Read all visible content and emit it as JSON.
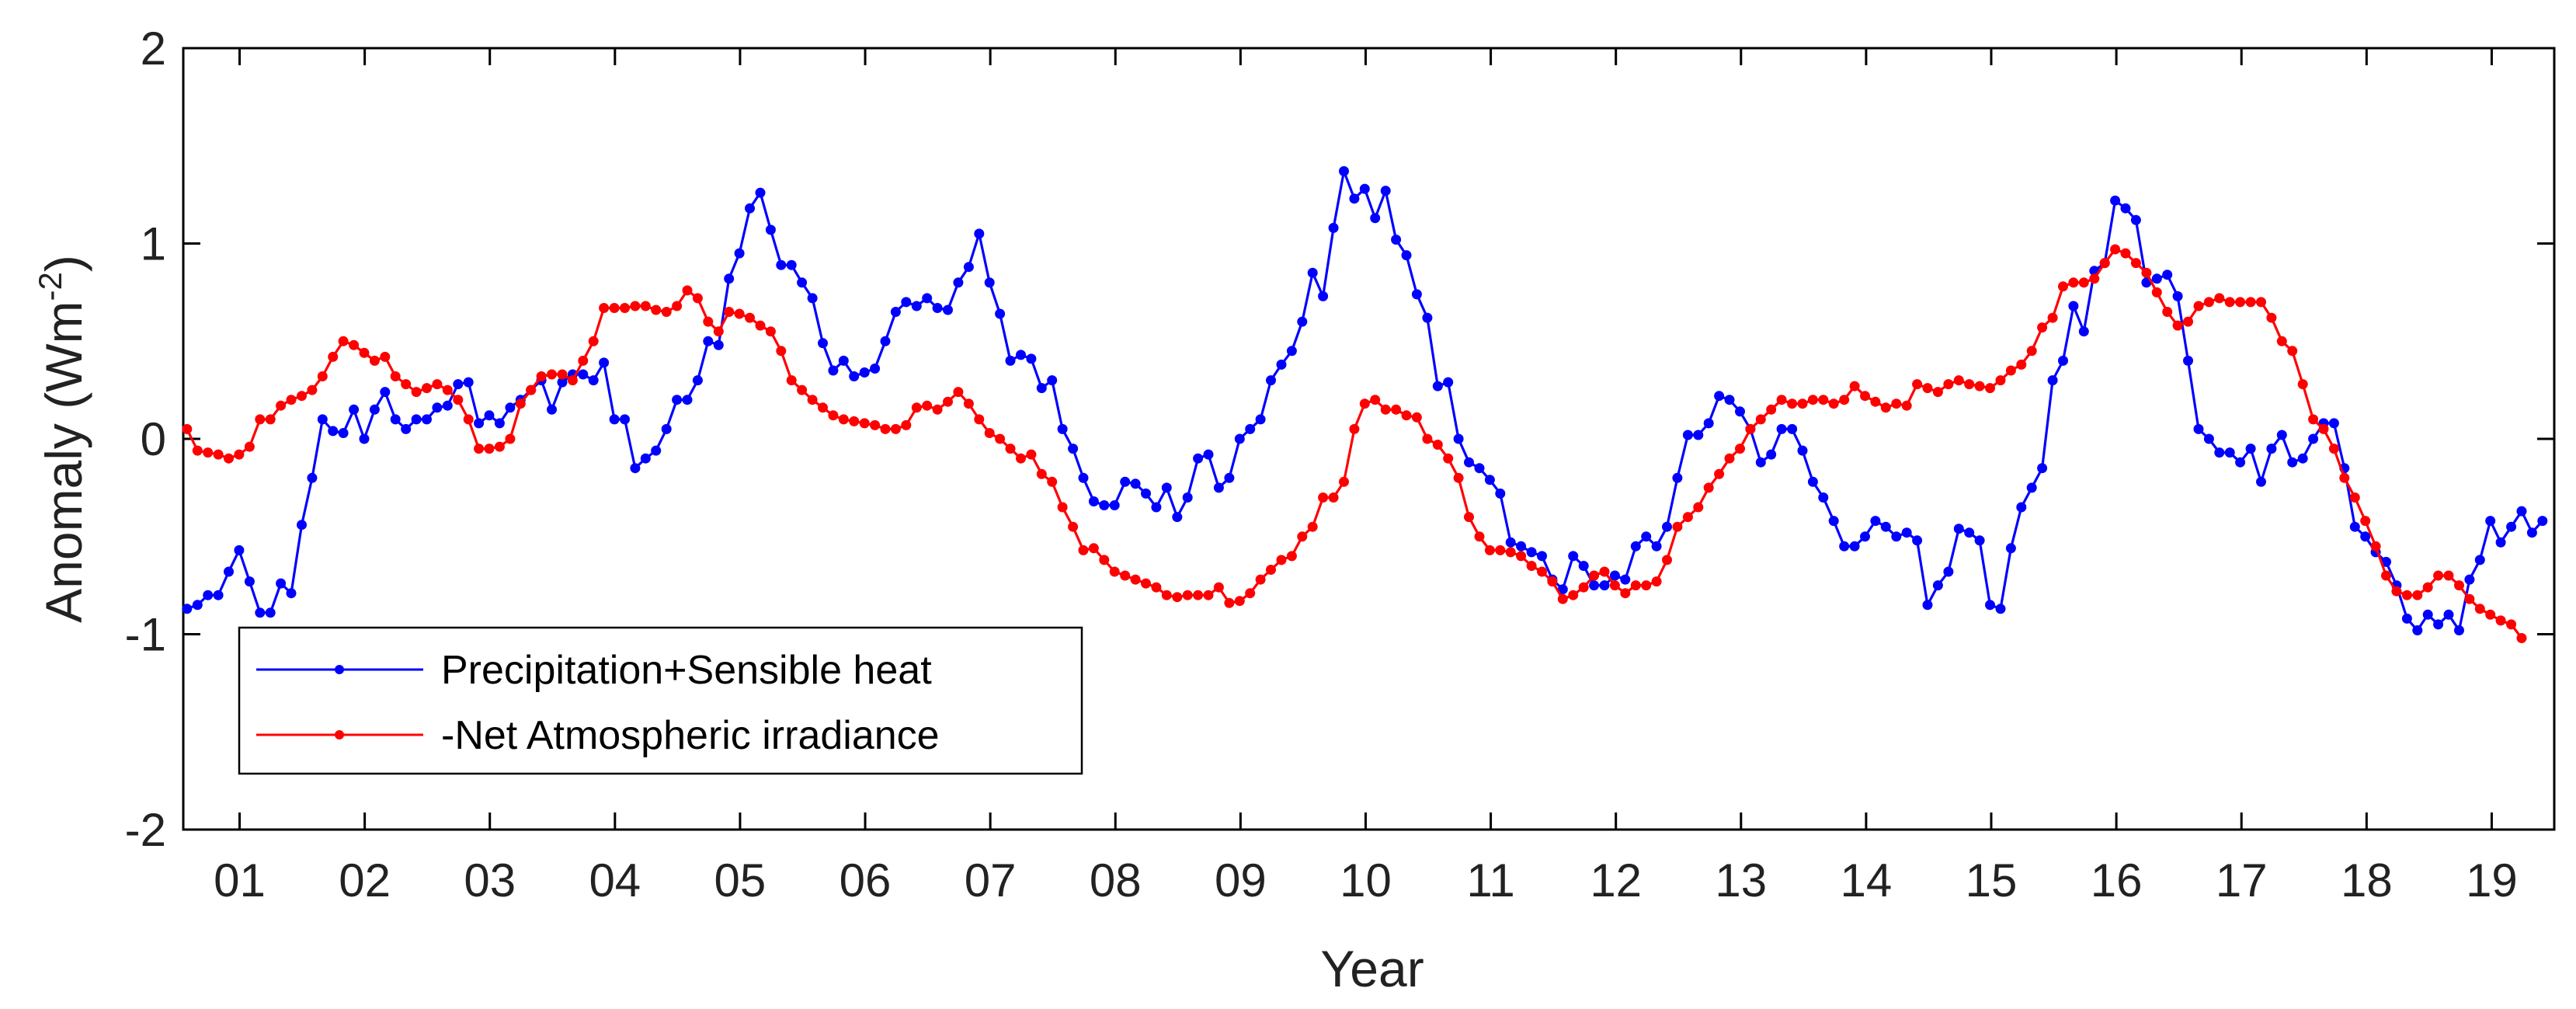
{
  "chart_data": {
    "type": "line",
    "title": "",
    "xlabel": "Year",
    "ylabel": "Anomaly (Wm",
    "ylabel_sup": "-2",
    "ylabel_end": ")",
    "xlim": [
      0.55,
      19.5
    ],
    "ylim": [
      -2,
      2
    ],
    "yticks": [
      -2,
      -1,
      0,
      1,
      2
    ],
    "ytick_labels": [
      "-2",
      "-1",
      "0",
      "1",
      "2"
    ],
    "xticks": [
      1,
      2,
      3,
      4,
      5,
      6,
      7,
      8,
      9,
      10,
      11,
      12,
      13,
      14,
      15,
      16,
      17,
      18,
      19
    ],
    "xtick_labels": [
      "01",
      "02",
      "03",
      "04",
      "05",
      "06",
      "07",
      "08",
      "09",
      "10",
      "11",
      "12",
      "13",
      "14",
      "15",
      "16",
      "17",
      "18",
      "19"
    ],
    "grid": false,
    "legend_position": "bottom-left",
    "series": [
      {
        "name": "Precipitation+Sensible heat",
        "color": "#0000ff",
        "x_start": 0.58,
        "x_step": 0.0833,
        "values": [
          -0.87,
          -0.85,
          -0.8,
          -0.8,
          -0.68,
          -0.57,
          -0.73,
          -0.89,
          -0.89,
          -0.74,
          -0.79,
          -0.44,
          -0.2,
          0.1,
          0.04,
          0.03,
          0.15,
          0.0,
          0.15,
          0.24,
          0.1,
          0.05,
          0.1,
          0.1,
          0.16,
          0.17,
          0.28,
          0.29,
          0.08,
          0.12,
          0.08,
          0.16,
          0.2,
          0.25,
          0.3,
          0.15,
          0.29,
          0.33,
          0.33,
          0.3,
          0.39,
          0.1,
          0.1,
          -0.15,
          -0.1,
          -0.06,
          0.05,
          0.2,
          0.2,
          0.3,
          0.5,
          0.48,
          0.82,
          0.95,
          1.18,
          1.26,
          1.07,
          0.89,
          0.89,
          0.8,
          0.72,
          0.49,
          0.35,
          0.4,
          0.32,
          0.34,
          0.36,
          0.5,
          0.65,
          0.7,
          0.68,
          0.72,
          0.67,
          0.66,
          0.8,
          0.88,
          1.05,
          0.8,
          0.64,
          0.4,
          0.43,
          0.41,
          0.26,
          0.3,
          0.05,
          -0.05,
          -0.2,
          -0.32,
          -0.34,
          -0.34,
          -0.22,
          -0.23,
          -0.28,
          -0.35,
          -0.25,
          -0.4,
          -0.3,
          -0.1,
          -0.08,
          -0.25,
          -0.2,
          0.0,
          0.05,
          0.1,
          0.3,
          0.38,
          0.45,
          0.6,
          0.85,
          0.73,
          1.08,
          1.37,
          1.23,
          1.28,
          1.13,
          1.27,
          1.02,
          0.94,
          0.74,
          0.62,
          0.27,
          0.29,
          0.0,
          -0.12,
          -0.15,
          -0.21,
          -0.28,
          -0.53,
          -0.55,
          -0.58,
          -0.6,
          -0.72,
          -0.77,
          -0.6,
          -0.65,
          -0.75,
          -0.75,
          -0.7,
          -0.72,
          -0.55,
          -0.5,
          -0.55,
          -0.45,
          -0.2,
          0.02,
          0.02,
          0.08,
          0.22,
          0.2,
          0.14,
          0.05,
          -0.12,
          -0.08,
          0.05,
          0.05,
          -0.06,
          -0.22,
          -0.3,
          -0.42,
          -0.55,
          -0.55,
          -0.5,
          -0.42,
          -0.45,
          -0.5,
          -0.48,
          -0.52,
          -0.85,
          -0.75,
          -0.68,
          -0.46,
          -0.48,
          -0.52,
          -0.85,
          -0.87,
          -0.56,
          -0.35,
          -0.25,
          -0.15,
          0.3,
          0.4,
          0.68,
          0.55,
          0.86,
          0.9,
          1.22,
          1.18,
          1.12,
          0.8,
          0.82,
          0.84,
          0.73,
          0.4,
          0.05,
          0.0,
          -0.07,
          -0.07,
          -0.12,
          -0.05,
          -0.22,
          -0.05,
          0.02,
          -0.12,
          -0.1,
          0.0,
          0.08,
          0.08,
          -0.15,
          -0.45,
          -0.5,
          -0.58,
          -0.63,
          -0.75,
          -0.92,
          -0.98,
          -0.9,
          -0.95,
          -0.9,
          -0.98,
          -0.72,
          -0.62,
          -0.42,
          -0.53,
          -0.45,
          -0.37,
          -0.48,
          -0.42
        ]
      },
      {
        "name": "-Net Atmospheric irradiance",
        "color": "#ff0000",
        "x_start": 0.58,
        "x_step": 0.0833,
        "values": [
          0.05,
          -0.06,
          -0.07,
          -0.08,
          -0.1,
          -0.08,
          -0.04,
          0.1,
          0.1,
          0.17,
          0.2,
          0.22,
          0.25,
          0.32,
          0.42,
          0.5,
          0.48,
          0.44,
          0.4,
          0.42,
          0.32,
          0.28,
          0.24,
          0.26,
          0.28,
          0.25,
          0.2,
          0.1,
          -0.05,
          -0.05,
          -0.04,
          0.0,
          0.18,
          0.25,
          0.32,
          0.33,
          0.33,
          0.3,
          0.4,
          0.5,
          0.67,
          0.67,
          0.67,
          0.68,
          0.68,
          0.66,
          0.65,
          0.68,
          0.76,
          0.72,
          0.6,
          0.55,
          0.65,
          0.64,
          0.62,
          0.58,
          0.55,
          0.45,
          0.3,
          0.25,
          0.2,
          0.16,
          0.12,
          0.1,
          0.09,
          0.08,
          0.07,
          0.05,
          0.05,
          0.07,
          0.16,
          0.17,
          0.15,
          0.19,
          0.24,
          0.18,
          0.1,
          0.03,
          0.0,
          -0.05,
          -0.1,
          -0.08,
          -0.18,
          -0.22,
          -0.35,
          -0.45,
          -0.57,
          -0.56,
          -0.62,
          -0.68,
          -0.7,
          -0.72,
          -0.74,
          -0.76,
          -0.8,
          -0.81,
          -0.8,
          -0.8,
          -0.8,
          -0.76,
          -0.84,
          -0.83,
          -0.79,
          -0.72,
          -0.67,
          -0.62,
          -0.6,
          -0.5,
          -0.45,
          -0.3,
          -0.3,
          -0.22,
          0.05,
          0.18,
          0.2,
          0.15,
          0.15,
          0.12,
          0.11,
          0.0,
          -0.03,
          -0.1,
          -0.2,
          -0.4,
          -0.5,
          -0.57,
          -0.57,
          -0.58,
          -0.6,
          -0.65,
          -0.68,
          -0.73,
          -0.82,
          -0.8,
          -0.76,
          -0.7,
          -0.68,
          -0.75,
          -0.79,
          -0.75,
          -0.75,
          -0.73,
          -0.62,
          -0.45,
          -0.4,
          -0.35,
          -0.25,
          -0.18,
          -0.1,
          -0.05,
          0.05,
          0.1,
          0.15,
          0.2,
          0.18,
          0.18,
          0.2,
          0.2,
          0.18,
          0.2,
          0.27,
          0.22,
          0.19,
          0.16,
          0.18,
          0.17,
          0.28,
          0.26,
          0.24,
          0.28,
          0.3,
          0.28,
          0.27,
          0.26,
          0.3,
          0.35,
          0.38,
          0.45,
          0.57,
          0.62,
          0.78,
          0.8,
          0.8,
          0.82,
          0.9,
          0.97,
          0.95,
          0.9,
          0.85,
          0.75,
          0.65,
          0.58,
          0.6,
          0.68,
          0.7,
          0.72,
          0.7,
          0.7,
          0.7,
          0.7,
          0.62,
          0.5,
          0.45,
          0.28,
          0.1,
          0.05,
          -0.05,
          -0.2,
          -0.3,
          -0.42,
          -0.55,
          -0.7,
          -0.78,
          -0.8,
          -0.8,
          -0.76,
          -0.7,
          -0.7,
          -0.75,
          -0.82,
          -0.87,
          -0.9,
          -0.93,
          -0.95,
          -1.02
        ]
      }
    ]
  }
}
